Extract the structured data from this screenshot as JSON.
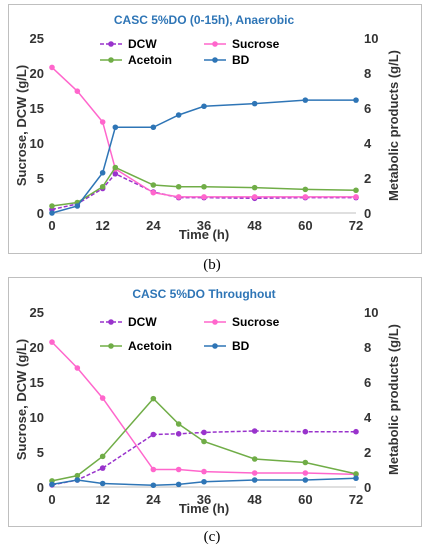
{
  "panels": [
    {
      "caption": "(b)",
      "chart_data": {
        "type": "line",
        "title": "CASC 5%DO (0-15h), Anaerobic",
        "xlabel": "Time (h)",
        "ylabel": "Sucrose, DCW (g/L)",
        "ylabel_right": "Metabolic products (g/L)",
        "xlim": [
          0,
          72
        ],
        "ylim": [
          0,
          25
        ],
        "ylim_right": [
          0,
          10
        ],
        "x_ticks": [
          "0",
          "12",
          "24",
          "36",
          "48",
          "60",
          "72"
        ],
        "y_ticks": [
          "0",
          "5",
          "10",
          "15",
          "20",
          "25"
        ],
        "y_ticks_right": [
          "0",
          "2",
          "4",
          "6",
          "8",
          "10"
        ],
        "grid": false,
        "legend": "top",
        "series": [
          {
            "name": "DCW",
            "axis": "left",
            "color": "#9933cc",
            "dashed": true,
            "x": [
              0,
              6,
              12,
              15,
              24,
              30,
              36,
              48,
              60,
              72
            ],
            "y": [
              0.5,
              1.3,
              3.5,
              5.6,
              3.0,
              2.2,
              2.2,
              2.1,
              2.2,
              2.2
            ]
          },
          {
            "name": "Sucrose",
            "axis": "left",
            "color": "#ff66cc",
            "dashed": false,
            "x": [
              0,
              6,
              12,
              15,
              24,
              30,
              36,
              48,
              60,
              72
            ],
            "y": [
              20.8,
              17.4,
              13.0,
              6.3,
              2.9,
              2.3,
              2.3,
              2.3,
              2.3,
              2.3
            ]
          },
          {
            "name": "Acetoin",
            "axis": "right",
            "color": "#70ad47",
            "dashed": false,
            "x": [
              0,
              6,
              12,
              15,
              24,
              30,
              36,
              48,
              60,
              72
            ],
            "y": [
              0.4,
              0.6,
              1.5,
              2.6,
              1.6,
              1.5,
              1.5,
              1.45,
              1.35,
              1.3
            ]
          },
          {
            "name": "BD",
            "axis": "right",
            "color": "#2e75b6",
            "dashed": false,
            "x": [
              0,
              6,
              12,
              15,
              24,
              30,
              36,
              48,
              60,
              72
            ],
            "y": [
              0.0,
              0.4,
              2.3,
              4.9,
              4.9,
              5.6,
              6.1,
              6.25,
              6.45,
              6.45
            ]
          }
        ]
      }
    },
    {
      "caption": "(c)",
      "chart_data": {
        "type": "line",
        "title": "CASC 5%DO Throughout",
        "xlabel": "Time (h)",
        "ylabel": "Sucrose, DCW  (g/L)",
        "ylabel_right": "Metabolic products (g/L)",
        "xlim": [
          0,
          72
        ],
        "ylim": [
          0,
          25
        ],
        "ylim_right": [
          0,
          10
        ],
        "x_ticks": [
          "0",
          "12",
          "24",
          "36",
          "48",
          "60",
          "72"
        ],
        "y_ticks": [
          "0",
          "5",
          "10",
          "15",
          "20",
          "25"
        ],
        "y_ticks_right": [
          "0",
          "2",
          "4",
          "6",
          "8",
          "10"
        ],
        "grid": false,
        "legend": "top",
        "series": [
          {
            "name": "DCW",
            "axis": "left",
            "color": "#9933cc",
            "dashed": true,
            "x": [
              0,
              6,
              12,
              24,
              30,
              36,
              48,
              60,
              72
            ],
            "y": [
              0.3,
              1.0,
              2.7,
              7.5,
              7.6,
              7.8,
              8.0,
              7.9,
              7.9
            ]
          },
          {
            "name": "Sucrose",
            "axis": "left",
            "color": "#ff66cc",
            "dashed": false,
            "x": [
              0,
              6,
              12,
              24,
              30,
              36,
              48,
              60,
              72
            ],
            "y": [
              20.7,
              17.0,
              12.7,
              2.5,
              2.5,
              2.2,
              2.0,
              2.0,
              1.8
            ]
          },
          {
            "name": "Acetoin",
            "axis": "right",
            "color": "#70ad47",
            "dashed": false,
            "x": [
              0,
              6,
              12,
              24,
              30,
              36,
              48,
              60,
              72
            ],
            "y": [
              0.35,
              0.65,
              1.75,
              5.05,
              3.6,
              2.6,
              1.6,
              1.4,
              0.75
            ]
          },
          {
            "name": "BD",
            "axis": "right",
            "color": "#2e75b6",
            "dashed": false,
            "x": [
              0,
              6,
              12,
              24,
              30,
              36,
              48,
              60,
              72
            ],
            "y": [
              0.15,
              0.4,
              0.2,
              0.1,
              0.15,
              0.3,
              0.4,
              0.4,
              0.5
            ]
          }
        ]
      }
    }
  ]
}
